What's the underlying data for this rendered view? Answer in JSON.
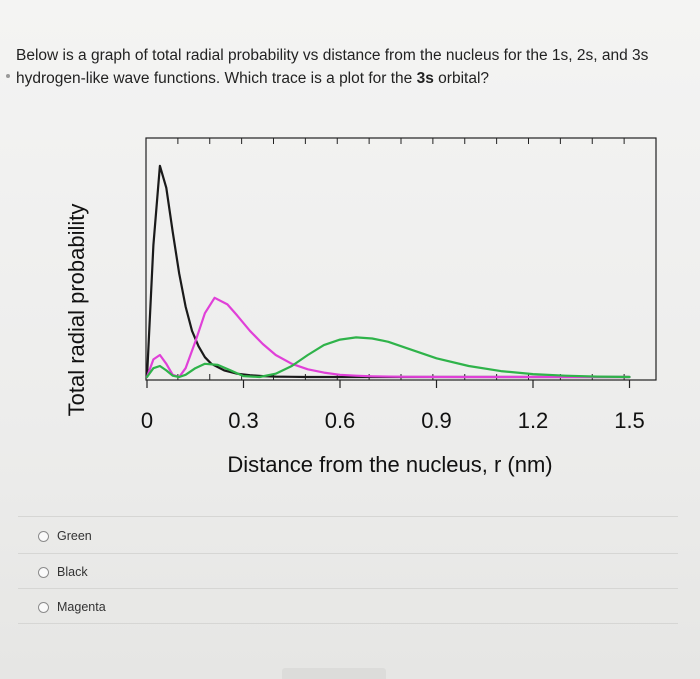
{
  "question": {
    "text_before": "Below is a graph of total radial probability vs distance from the nucleus for the 1s, 2s, and 3s hydrogen-like wave functions. Which trace is a plot for the ",
    "text_bold": "3s",
    "text_after": " orbital?"
  },
  "options": [
    {
      "label": "Green"
    },
    {
      "label": "Black"
    },
    {
      "label": "Magenta"
    }
  ],
  "colors": {
    "black": "#1a1a1a",
    "magenta": "#e040d8",
    "green": "#2fb34a"
  },
  "chart_data": {
    "type": "line",
    "title": "",
    "xlabel": "Distance from the nucleus, r (nm)",
    "ylabel": "Total radial probability",
    "xlim": [
      0,
      1.5
    ],
    "ylim": [
      0,
      1.0
    ],
    "x_ticks": [
      "0",
      "0.3",
      "0.6",
      "0.9",
      "1.2",
      "1.5"
    ],
    "x_tick_values": [
      0,
      0.3,
      0.6,
      0.9,
      1.2,
      1.5
    ],
    "grid": false,
    "legend": "none",
    "series": [
      {
        "color": "black",
        "x": [
          0,
          0.02,
          0.04,
          0.06,
          0.08,
          0.1,
          0.12,
          0.14,
          0.16,
          0.18,
          0.2,
          0.24,
          0.28,
          0.32,
          0.36,
          0.4,
          0.45,
          0.5,
          0.6,
          0.8,
          1.0,
          1.2,
          1.5
        ],
        "y": [
          0,
          0.6,
          0.96,
          0.86,
          0.66,
          0.47,
          0.32,
          0.21,
          0.14,
          0.09,
          0.06,
          0.03,
          0.015,
          0.008,
          0.004,
          0.002,
          0.001,
          0.0,
          0.0,
          0.0,
          0.0,
          0.0,
          0.0
        ]
      },
      {
        "color": "magenta",
        "x": [
          0,
          0.02,
          0.04,
          0.06,
          0.08,
          0.1,
          0.12,
          0.15,
          0.18,
          0.21,
          0.25,
          0.28,
          0.32,
          0.36,
          0.4,
          0.45,
          0.5,
          0.55,
          0.6,
          0.65,
          0.7,
          0.8,
          1.0,
          1.2,
          1.5
        ],
        "y": [
          0,
          0.08,
          0.1,
          0.06,
          0.01,
          0.0,
          0.04,
          0.16,
          0.29,
          0.36,
          0.33,
          0.28,
          0.21,
          0.15,
          0.1,
          0.06,
          0.035,
          0.02,
          0.01,
          0.006,
          0.003,
          0.001,
          0.0,
          0.0,
          0.0
        ]
      },
      {
        "color": "green",
        "x": [
          0,
          0.02,
          0.04,
          0.06,
          0.08,
          0.1,
          0.12,
          0.15,
          0.18,
          0.22,
          0.26,
          0.3,
          0.35,
          0.4,
          0.45,
          0.5,
          0.55,
          0.6,
          0.65,
          0.7,
          0.75,
          0.8,
          0.85,
          0.9,
          1.0,
          1.1,
          1.2,
          1.3,
          1.4,
          1.5
        ],
        "y": [
          0,
          0.04,
          0.05,
          0.03,
          0.006,
          0.0,
          0.01,
          0.04,
          0.06,
          0.055,
          0.03,
          0.004,
          0.0,
          0.015,
          0.05,
          0.1,
          0.145,
          0.17,
          0.18,
          0.175,
          0.16,
          0.135,
          0.11,
          0.085,
          0.05,
          0.027,
          0.013,
          0.006,
          0.002,
          0.0
        ]
      }
    ]
  }
}
